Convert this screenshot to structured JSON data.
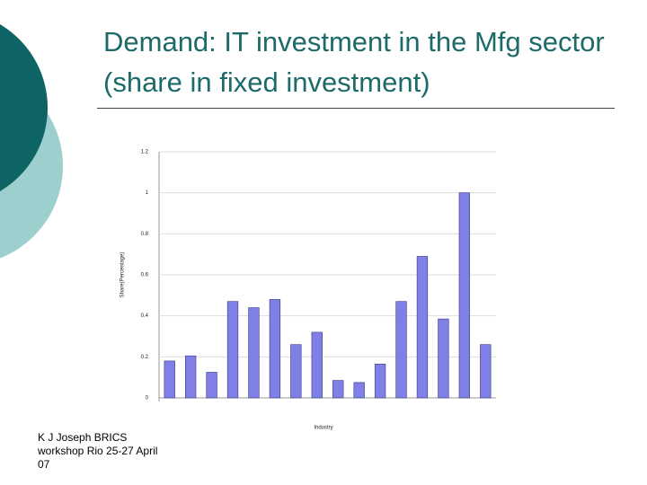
{
  "title": "Demand: IT investment in the Mfg sector (share in fixed investment)",
  "footer": [
    "K J Joseph  BRICS",
    "workshop Rio 25-27 April",
    "07"
  ],
  "chart_data": {
    "type": "bar",
    "x_label": "Industry",
    "y_label": "Share(Percentage)",
    "categories": [
      null,
      null,
      null,
      null,
      null,
      null,
      null,
      null,
      null,
      null,
      null,
      null,
      null,
      null,
      null,
      null
    ],
    "values": [
      0.18,
      0.205,
      0.125,
      0.47,
      0.44,
      0.48,
      0.26,
      0.32,
      0.085,
      0.075,
      0.165,
      0.47,
      0.69,
      0.385,
      1.0,
      0.26
    ],
    "color": "#7f7fe6",
    "ylim": [
      0,
      1.2
    ],
    "yticks": [
      0,
      0.2,
      0.4,
      0.6,
      0.8,
      1,
      1.2
    ],
    "grid": true
  }
}
